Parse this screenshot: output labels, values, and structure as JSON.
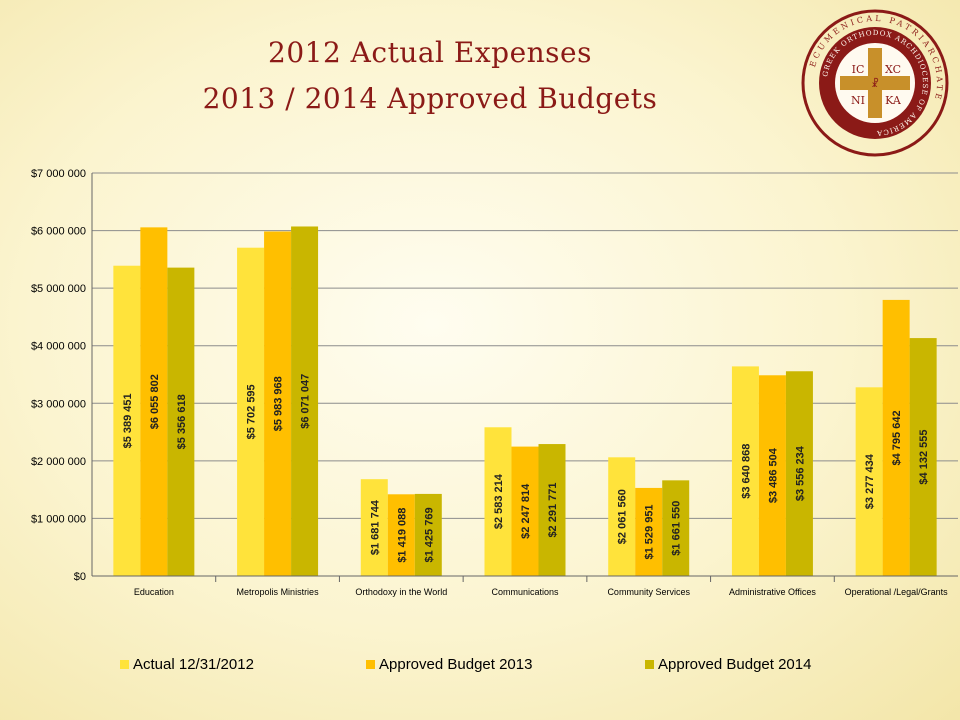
{
  "title": {
    "line1": "2012 Actual Expenses",
    "line2": "2013 / 2014 Approved Budgets"
  },
  "seal": {
    "ring_text": "ECUMENICAL PATRIARCHATE",
    "inner_text": "GREEK ORTHODOX ARCHDIOCESE OF AMERICA",
    "letters": [
      "IC",
      "XC",
      "NI",
      "KA"
    ],
    "colors": {
      "ring": "#8b1a17",
      "cross": "#c8902a",
      "inner": "#fffaf0"
    }
  },
  "chart_data": {
    "type": "bar",
    "categories": [
      "Education",
      "Metropolis Ministries",
      "Orthodoxy in the World",
      "Communications",
      "Community Services",
      "Administrative Offices",
      "Operational /Legal/Grants"
    ],
    "series": [
      {
        "name": "Actual 12/31/2012",
        "color": "#ffe33b",
        "values": [
          5389451,
          5702595,
          1681744,
          2583214,
          2061560,
          3640868,
          3277434
        ],
        "labels": [
          "$5 389 451",
          "$5 702 595",
          "$1 681 744",
          "$2 583 214",
          "$2 061 560",
          "$3 640 868",
          "$3 277 434"
        ]
      },
      {
        "name": "Approved Budget 2013",
        "color": "#ffbf00",
        "values": [
          6055802,
          5983968,
          1419088,
          2247814,
          1529951,
          3486504,
          4795642
        ],
        "labels": [
          "$6 055 802",
          "$5 983 968",
          "$1 419 088",
          "$2 247 814",
          "$1 529 951",
          "$3 486 504",
          "$4 795 642"
        ]
      },
      {
        "name": "Approved Budget 2014",
        "color": "#c9b600",
        "values": [
          5356618,
          6071047,
          1425769,
          2291771,
          1661550,
          3556234,
          4132555
        ],
        "labels": [
          "$5 356 618",
          "$6 071 047",
          "$1 425 769",
          "$2 291 771",
          "$1 661 550",
          "$3 556 234",
          "$4 132 555"
        ]
      }
    ],
    "ylim": [
      0,
      7000000
    ],
    "yticks": [
      0,
      1000000,
      2000000,
      3000000,
      4000000,
      5000000,
      6000000,
      7000000
    ],
    "ytick_labels": [
      "$0",
      "$1 000 000",
      "$2 000 000",
      "$3 000 000",
      "$4 000 000",
      "$5 000 000",
      "$6 000 000",
      "$7 000 000"
    ],
    "grid": true,
    "legend": "bottom"
  }
}
